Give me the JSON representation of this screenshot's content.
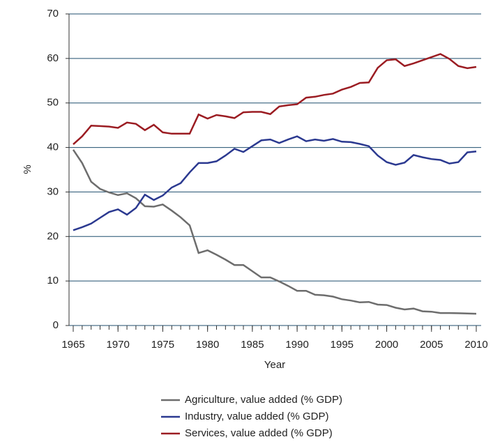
{
  "chart_data": {
    "type": "line",
    "x_label": "Year",
    "y_label": "%",
    "x": [
      1965,
      1966,
      1967,
      1968,
      1969,
      1970,
      1971,
      1972,
      1973,
      1974,
      1975,
      1976,
      1977,
      1978,
      1979,
      1980,
      1981,
      1982,
      1983,
      1984,
      1985,
      1986,
      1987,
      1988,
      1989,
      1990,
      1991,
      1992,
      1993,
      1994,
      1995,
      1996,
      1997,
      1998,
      1999,
      2000,
      2001,
      2002,
      2003,
      2004,
      2005,
      2006,
      2007,
      2008,
      2009,
      2010
    ],
    "series": [
      {
        "name": "Agriculture, value added (% GDP)",
        "color": "#6d6d6d",
        "values": [
          39.5,
          36.5,
          32.3,
          30.7,
          29.9,
          29.3,
          29.7,
          28.6,
          26.8,
          26.7,
          27.2,
          25.8,
          24.3,
          22.5,
          16.3,
          16.9,
          15.9,
          14.8,
          13.6,
          13.6,
          12.2,
          10.8,
          10.8,
          9.9,
          8.9,
          7.8,
          7.8,
          6.9,
          6.8,
          6.5,
          5.9,
          5.6,
          5.2,
          5.3,
          4.7,
          4.6,
          4.0,
          3.6,
          3.8,
          3.2,
          3.1,
          2.8,
          2.8,
          2.75,
          2.7,
          2.65
        ]
      },
      {
        "name": "Industry, value added (% GDP)",
        "color": "#2b3990",
        "values": [
          21.4,
          22.1,
          22.9,
          24.2,
          25.5,
          26.1,
          24.9,
          26.4,
          29.4,
          28.2,
          29.2,
          31.0,
          32.0,
          34.4,
          36.5,
          36.5,
          36.9,
          38.2,
          39.7,
          39.0,
          40.3,
          41.6,
          41.8,
          41.0,
          41.8,
          42.5,
          41.4,
          41.8,
          41.5,
          41.9,
          41.3,
          41.2,
          40.8,
          40.3,
          38.2,
          36.7,
          36.1,
          36.6,
          38.3,
          37.8,
          37.4,
          37.2,
          36.4,
          36.7,
          38.9,
          39.1
        ]
      },
      {
        "name": "Services, value added (% GDP)",
        "color": "#9b1c22",
        "values": [
          40.7,
          42.5,
          44.9,
          44.8,
          44.7,
          44.4,
          45.6,
          45.3,
          43.9,
          45.1,
          43.4,
          43.1,
          43.1,
          43.1,
          47.4,
          46.5,
          47.3,
          47.0,
          46.6,
          47.9,
          48.0,
          48.0,
          47.5,
          49.2,
          49.5,
          49.7,
          51.2,
          51.4,
          51.8,
          52.1,
          53.0,
          53.6,
          54.5,
          54.6,
          57.9,
          59.6,
          59.8,
          58.3,
          58.9,
          59.6,
          60.3,
          61.0,
          59.9,
          58.3,
          57.8,
          58.1
        ]
      }
    ],
    "xlim": [
      1965,
      2010
    ],
    "xticks": [
      1965,
      1970,
      1975,
      1980,
      1985,
      1990,
      1995,
      2000,
      2005,
      2010
    ],
    "ylim": [
      0,
      70
    ],
    "yticks": [
      0,
      10,
      20,
      30,
      40,
      50,
      60,
      70
    ],
    "grid": true
  }
}
